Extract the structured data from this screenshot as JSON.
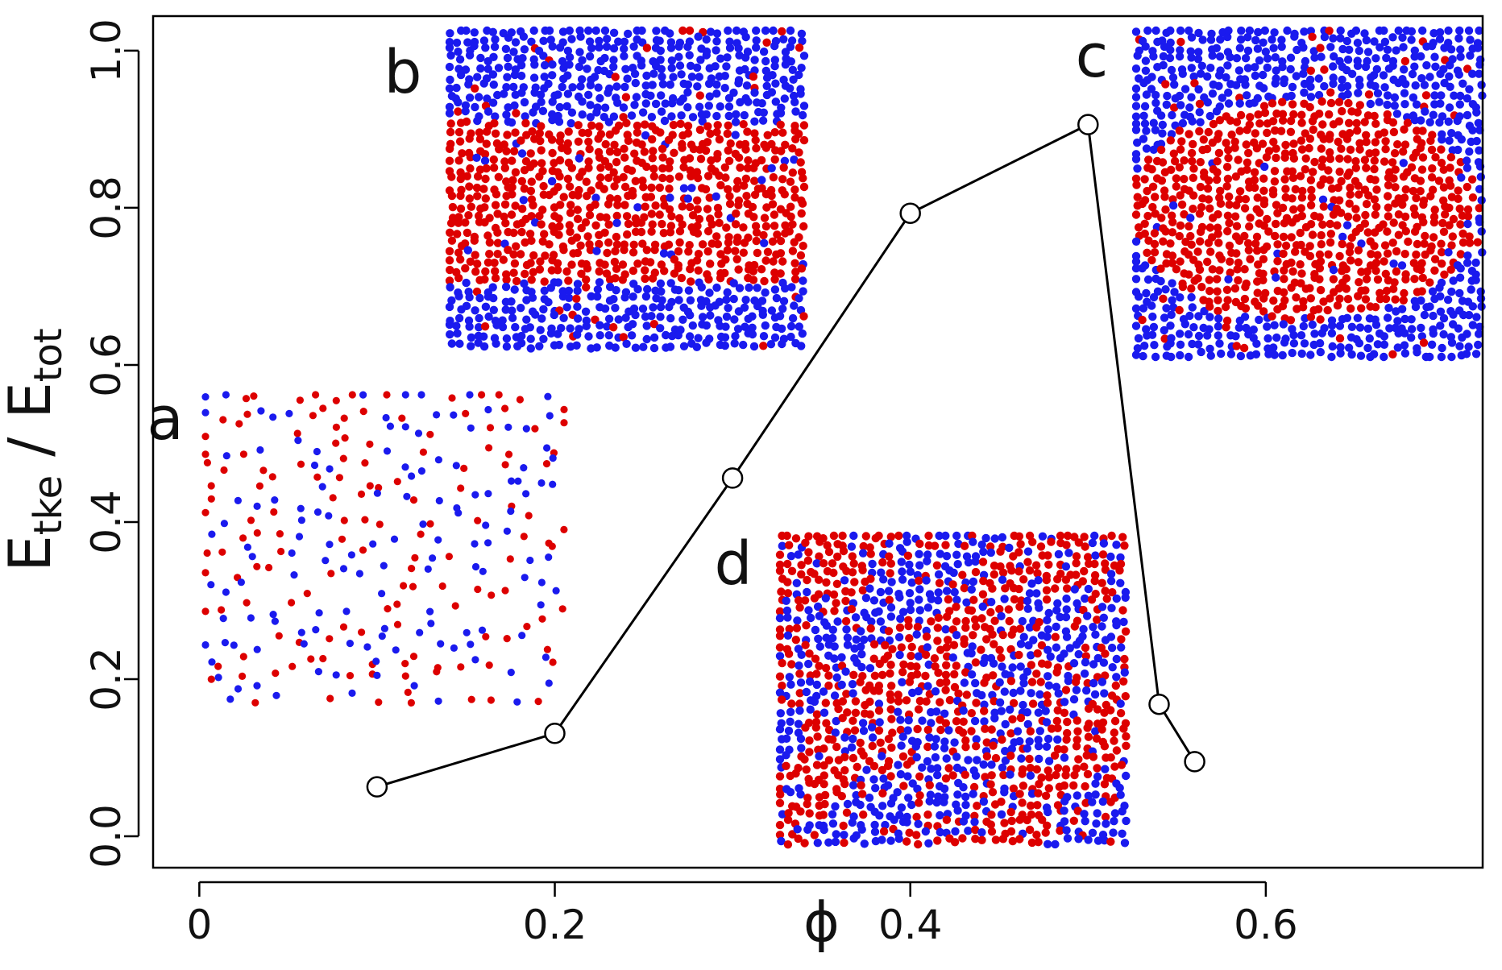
{
  "chart_data": {
    "type": "line",
    "xlabel": "ϕ",
    "ylabel": {
      "main": "E",
      "sub_num": "tke",
      "sep": " / ",
      "main2": "E",
      "sub_den": "tot"
    },
    "xlim": [
      -0.026,
      0.722
    ],
    "ylim": [
      -0.04,
      1.044
    ],
    "xticks": [
      0,
      0.2,
      0.4,
      0.6
    ],
    "xtick_labels": [
      "0",
      "0.2",
      "0.4",
      "0.6"
    ],
    "yticks": [
      0.0,
      0.2,
      0.4,
      0.6,
      0.8,
      1.0
    ],
    "ytick_labels": [
      "0.0",
      "0.2",
      "0.4",
      "0.6",
      "0.8",
      "1.0"
    ],
    "grid": false,
    "series": [
      {
        "marker": "open-circle",
        "color": "#000000",
        "x": [
          0.1,
          0.2,
          0.3,
          0.4,
          0.5,
          0.54,
          0.56
        ],
        "y": [
          0.063,
          0.131,
          0.456,
          0.793,
          0.906,
          0.168,
          0.095
        ]
      }
    ],
    "insets": [
      {
        "label": "a",
        "pattern": "gas-mixed",
        "colors": [
          "#dd0000",
          "#1a1aee"
        ]
      },
      {
        "label": "b",
        "pattern": "band",
        "colors": [
          "#dd0000",
          "#1a1aee"
        ]
      },
      {
        "label": "c",
        "pattern": "droplet",
        "colors": [
          "#dd0000",
          "#1a1aee"
        ]
      },
      {
        "label": "d",
        "pattern": "dense-mixed",
        "colors": [
          "#dd0000",
          "#1a1aee"
        ]
      }
    ]
  }
}
